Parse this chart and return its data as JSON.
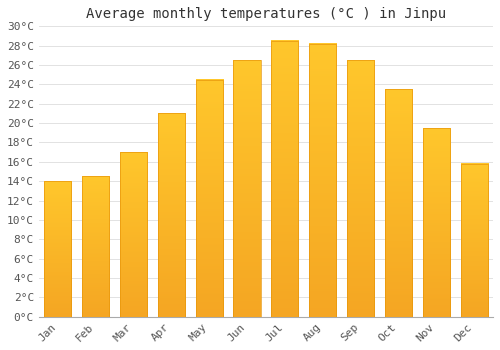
{
  "title": "Average monthly temperatures (°C ) in Jinpu",
  "months": [
    "Jan",
    "Feb",
    "Mar",
    "Apr",
    "May",
    "Jun",
    "Jul",
    "Aug",
    "Sep",
    "Oct",
    "Nov",
    "Dec"
  ],
  "values": [
    14.0,
    14.5,
    17.0,
    21.0,
    24.5,
    26.5,
    28.5,
    28.2,
    26.5,
    23.5,
    19.5,
    15.8
  ],
  "bar_color_top": "#FFC72C",
  "bar_color_bottom": "#F5A623",
  "bar_edge_color": "#E8960A",
  "plot_bg_color": "#FFFFFF",
  "fig_bg_color": "#FFFFFF",
  "grid_color": "#DDDDDD",
  "title_color": "#333333",
  "tick_color": "#555555",
  "ylim": [
    0,
    30
  ],
  "ytick_step": 2,
  "title_fontsize": 10,
  "tick_fontsize": 8
}
